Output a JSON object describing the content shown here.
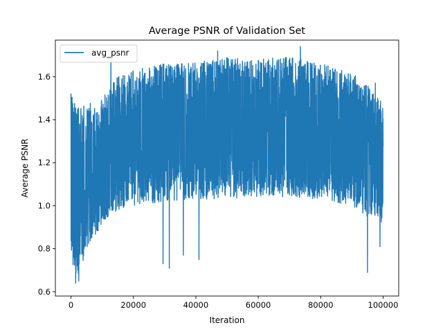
{
  "chart_data": {
    "type": "line",
    "title": "Average PSNR of Validation Set",
    "xlabel": "Iteration",
    "ylabel": "Average PSNR",
    "xlim": [
      -5000,
      105000
    ],
    "ylim": [
      0.58,
      1.77
    ],
    "x_ticks": [
      0,
      20000,
      40000,
      60000,
      80000,
      100000
    ],
    "x_tick_labels": [
      "0",
      "20000",
      "40000",
      "60000",
      "80000",
      "100000"
    ],
    "y_ticks": [
      0.6,
      0.8,
      1.0,
      1.2,
      1.4,
      1.6
    ],
    "y_tick_labels": [
      "0.6",
      "0.8",
      "1.0",
      "1.2",
      "1.4",
      "1.6"
    ],
    "grid": false,
    "legend": {
      "position": "top-left"
    },
    "series": [
      {
        "name": "avg_psnr",
        "color": "#1f77b4",
        "envelope": {
          "x": [
            0,
            2000,
            5000,
            10000,
            15000,
            20000,
            30000,
            40000,
            50000,
            60000,
            70000,
            80000,
            90000,
            95000,
            100000
          ],
          "upper": [
            1.52,
            1.47,
            1.47,
            1.5,
            1.6,
            1.63,
            1.66,
            1.67,
            1.69,
            1.68,
            1.7,
            1.66,
            1.62,
            1.56,
            1.48
          ],
          "lower": [
            0.75,
            0.65,
            0.78,
            0.92,
            0.98,
            1.0,
            1.02,
            1.03,
            1.03,
            1.04,
            1.04,
            1.03,
            1.0,
            0.95,
            0.92
          ],
          "center": [
            1.15,
            1.07,
            1.1,
            1.19,
            1.26,
            1.3,
            1.33,
            1.34,
            1.35,
            1.35,
            1.35,
            1.34,
            1.31,
            1.26,
            1.2
          ]
        },
        "peaks": [
          {
            "x": 0,
            "y": 1.52
          },
          {
            "x": 12800,
            "y": 1.7
          },
          {
            "x": 47000,
            "y": 1.72
          },
          {
            "x": 73500,
            "y": 1.74
          },
          {
            "x": 97500,
            "y": 1.57
          }
        ],
        "dips": [
          {
            "x": 1500,
            "y": 0.64
          },
          {
            "x": 2500,
            "y": 0.65
          },
          {
            "x": 29500,
            "y": 0.73
          },
          {
            "x": 31500,
            "y": 0.71
          },
          {
            "x": 36000,
            "y": 0.77
          },
          {
            "x": 41000,
            "y": 0.75
          },
          {
            "x": 95000,
            "y": 0.69
          },
          {
            "x": 99000,
            "y": 0.81
          }
        ]
      }
    ]
  }
}
